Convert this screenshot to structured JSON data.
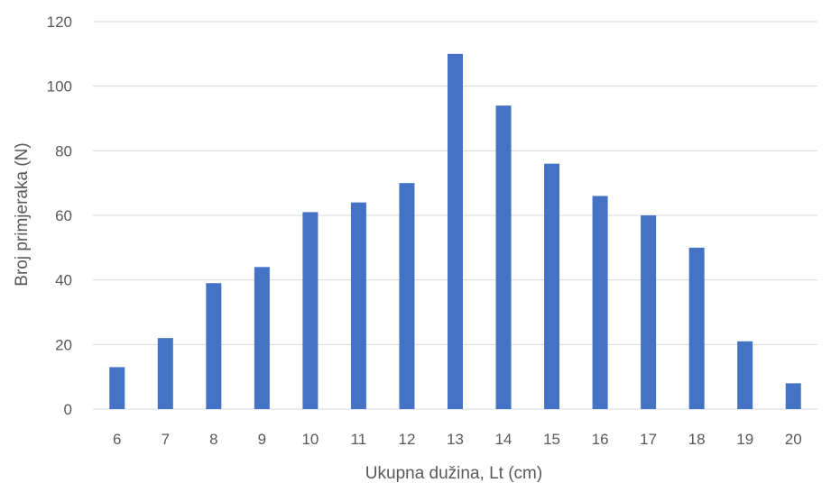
{
  "chart_data": {
    "type": "bar",
    "categories": [
      "6",
      "7",
      "8",
      "9",
      "10",
      "11",
      "12",
      "13",
      "14",
      "15",
      "16",
      "17",
      "18",
      "19",
      "20"
    ],
    "values": [
      13,
      22,
      39,
      44,
      61,
      64,
      70,
      110,
      94,
      76,
      66,
      60,
      50,
      21,
      8
    ],
    "xlabel": "Ukupna dužina, Lt (cm)",
    "ylabel": "Broj primjeraka (N)",
    "ylim": [
      0,
      120
    ],
    "yticks": [
      0,
      20,
      40,
      60,
      80,
      100,
      120
    ],
    "grid": true,
    "legend": "none",
    "bar_color": "#4472c4"
  }
}
